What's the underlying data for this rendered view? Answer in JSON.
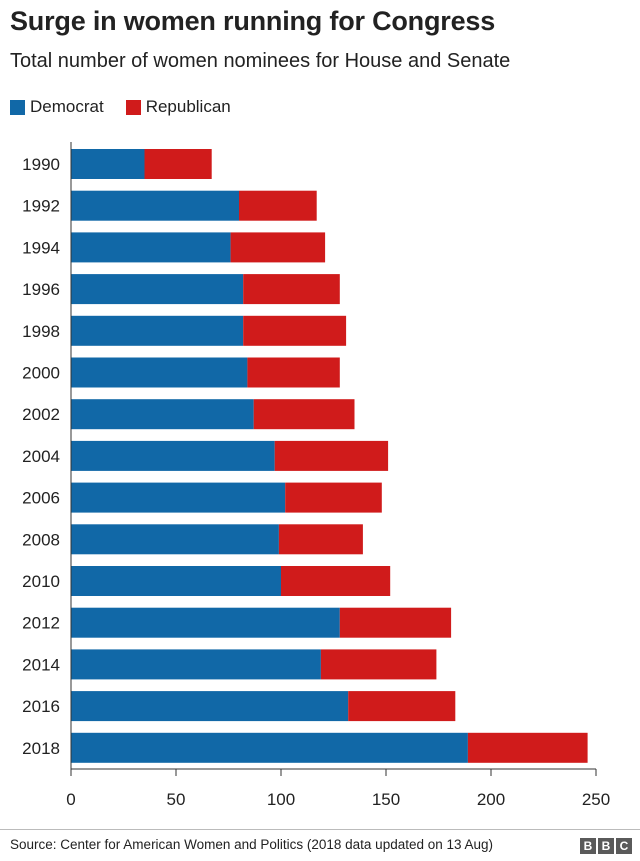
{
  "chart_data": {
    "type": "bar",
    "orientation": "horizontal",
    "stacked": true,
    "title": "Surge in women running for Congress",
    "subtitle": "Total number of women nominees for House and Senate",
    "categories": [
      "1990",
      "1992",
      "1994",
      "1996",
      "1998",
      "2000",
      "2002",
      "2004",
      "2006",
      "2008",
      "2010",
      "2012",
      "2014",
      "2016",
      "2018"
    ],
    "series": [
      {
        "name": "Democrat",
        "color": "#1168a7",
        "values": [
          35,
          80,
          76,
          82,
          82,
          84,
          87,
          97,
          102,
          99,
          100,
          128,
          119,
          132,
          189
        ]
      },
      {
        "name": "Republican",
        "color": "#d01b1b",
        "values": [
          32,
          37,
          45,
          46,
          49,
          44,
          48,
          54,
          46,
          40,
          52,
          53,
          55,
          51,
          57
        ]
      }
    ],
    "xlim": [
      0,
      250
    ],
    "xticks": [
      0,
      50,
      100,
      150,
      200,
      250
    ],
    "legend_position": "top-left",
    "grid": false
  },
  "source": "Source: Center for American Women and Politics (2018 data updated on 13 Aug)",
  "logo": {
    "letters": [
      "B",
      "B",
      "C"
    ]
  }
}
